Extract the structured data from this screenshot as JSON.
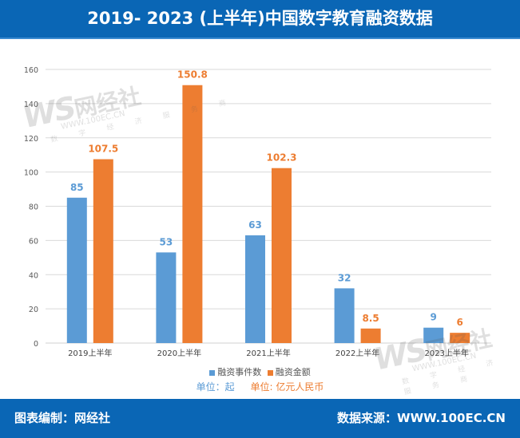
{
  "header": {
    "title": "2019- 2023 (上半年)中国数字教育融资数据"
  },
  "footer": {
    "left": "图表编制：网经社",
    "right": "数据来源：WWW.100EC.CN"
  },
  "watermark": {
    "logo": "WS",
    "name": "网经社",
    "url": "WWW.100EC.CN",
    "tagline": "数 字 经 济 服 务 商"
  },
  "units": {
    "count": "单位：起",
    "amount": "单位: 亿元人民币"
  },
  "colors": {
    "header_bg": "#0a66b5",
    "count": "#5b9bd5",
    "amount": "#ed7d31",
    "count_label": "#5b9bd5",
    "amount_label": "#ed7d31"
  },
  "chart_data": {
    "type": "bar",
    "title": "2019- 2023 (上半年)中国数字教育融资数据",
    "xlabel": "",
    "ylabel": "",
    "categories": [
      "2019上半年",
      "2020上半年",
      "2021上半年",
      "2022上半年",
      "2023上半年"
    ],
    "series": [
      {
        "name": "融资事件数",
        "values": [
          85,
          53,
          63,
          32,
          9
        ],
        "labels": [
          "85",
          "53",
          "63",
          "32",
          "9"
        ]
      },
      {
        "name": "融资金额",
        "values": [
          107.5,
          150.8,
          102.3,
          8.5,
          6
        ],
        "labels": [
          "107.5",
          "150.8",
          "102.3",
          "8.5",
          "6"
        ]
      }
    ],
    "ylim": [
      0,
      160
    ],
    "yticks": [
      "0",
      "20",
      "40",
      "60",
      "80",
      "100",
      "120",
      "140",
      "160"
    ],
    "grid": true,
    "legend": "bottom"
  }
}
